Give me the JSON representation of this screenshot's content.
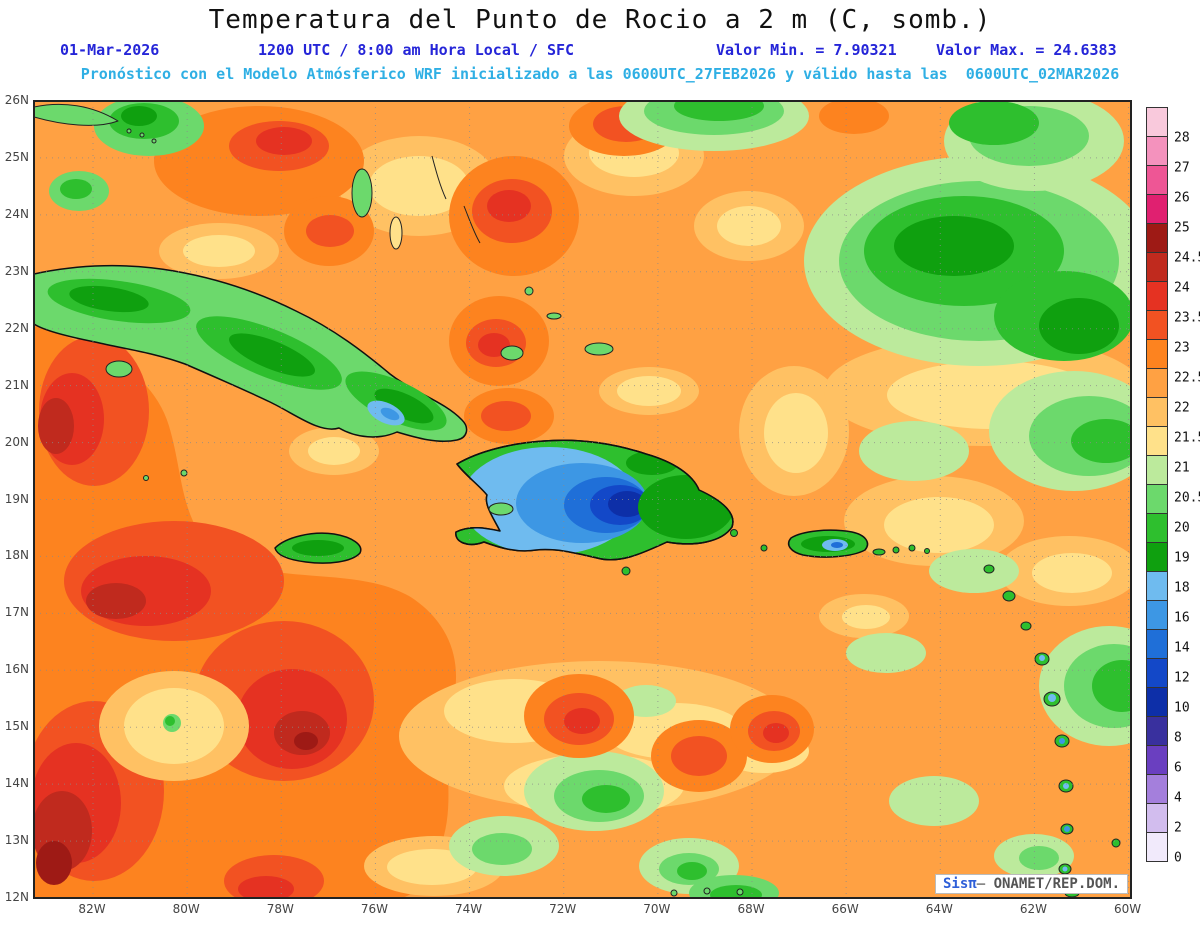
{
  "header": {
    "title": "Temperatura del Punto de Rocio a 2 m (C, somb.)",
    "line2": {
      "date": "01-Mar-2026",
      "time": "1200 UTC / 8:00 am Hora Local / SFC",
      "min": "Valor Min. = 7.90321",
      "max": "Valor Max. = 24.6383"
    },
    "line3": "Pronóstico con el Modelo Atmósferico WRF inicializado a las 0600UTC_27FEB2026 y válido hasta las  0600UTC_02MAR2026"
  },
  "map": {
    "lat_labels": [
      "26N",
      "25N",
      "24N",
      "23N",
      "22N",
      "21N",
      "20N",
      "19N",
      "18N",
      "17N",
      "16N",
      "15N",
      "14N",
      "13N",
      "12N"
    ],
    "lon_labels": [
      "82W",
      "80W",
      "78W",
      "76W",
      "74W",
      "72W",
      "70W",
      "68W",
      "66W",
      "64W",
      "62W",
      "60W"
    ],
    "watermark": {
      "brand": "Sisπ",
      "separator": "— ",
      "org": "ONAMET/REP.DOM."
    }
  },
  "colorbar": {
    "colors": [
      "#F9C9DC",
      "#F492BD",
      "#EE5695",
      "#E02070",
      "#9E1A15",
      "#C02A1E",
      "#E53222",
      "#F25222",
      "#FD831F",
      "#FFA143",
      "#FFC163",
      "#FFE18A",
      "#BCEA9C",
      "#6CD96C",
      "#2EBF2E",
      "#0FA00F",
      "#6FBBEF",
      "#3D97E4",
      "#1F6FD8",
      "#1348C8",
      "#0D2FA8",
      "#39309E",
      "#6A3FC0",
      "#A47FDC",
      "#D2BDEE",
      "#F1EAFB"
    ],
    "labels": [
      "28",
      "27",
      "26",
      "25",
      "24.5",
      "24",
      "23.5",
      "23",
      "22.5",
      "22",
      "21.5",
      "21",
      "20.5",
      "20",
      "19",
      "18",
      "16",
      "14",
      "12",
      "10",
      "8",
      "6",
      "4",
      "2",
      "0"
    ]
  },
  "chart_data": {
    "type": "heatmap",
    "title": "Temperatura del Punto de Rocio a 2 m (C, somb.)",
    "variable": "Dew point temperature at 2 m",
    "units": "C",
    "valid_time": "01-Mar-2026 1200 UTC / 8:00 am Hora Local / SFC",
    "model": "WRF",
    "initialized": "0600UTC_27FEB2026",
    "valid_until": "0600UTC_02MAR2026",
    "value_min": 7.90321,
    "value_max": 24.6383,
    "lat_range": [
      "12N",
      "26N"
    ],
    "lon_range": [
      "82W",
      "60W"
    ],
    "contour_levels": [
      0,
      2,
      4,
      6,
      8,
      10,
      12,
      14,
      16,
      18,
      19,
      20,
      20.5,
      21,
      21.5,
      22,
      22.5,
      23,
      23.5,
      24,
      24.5,
      25,
      26,
      27,
      28
    ],
    "legend_position": "right",
    "grid": "dotted"
  }
}
